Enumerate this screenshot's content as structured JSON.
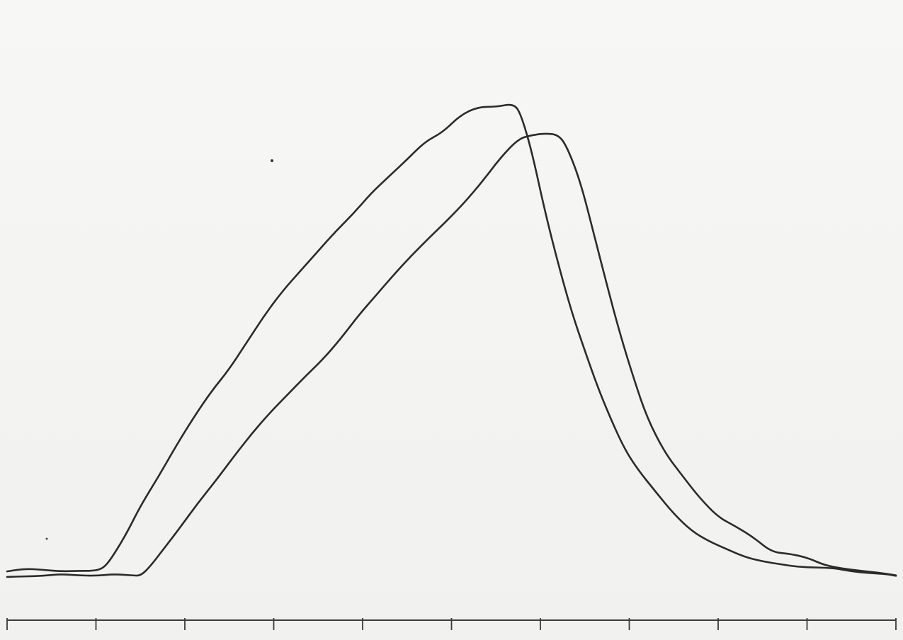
{
  "chart_data": {
    "type": "line",
    "title": "",
    "xlabel": "",
    "ylabel": "",
    "xlim": [
      0,
      10
    ],
    "ylim": [
      0,
      100
    ],
    "grid": false,
    "legend": "none",
    "x_ticks": [
      0,
      1,
      2,
      3,
      4,
      5,
      6,
      7,
      8,
      9,
      10
    ],
    "series": [
      {
        "color": "#2b2b2b",
        "points": [
          [
            0.0,
            8.8
          ],
          [
            0.2,
            9.3
          ],
          [
            0.4,
            9.1
          ],
          [
            0.6,
            8.8
          ],
          [
            0.8,
            8.9
          ],
          [
            1.0,
            8.9
          ],
          [
            1.1,
            9.6
          ],
          [
            1.2,
            11.8
          ],
          [
            1.35,
            15.8
          ],
          [
            1.5,
            20.6
          ],
          [
            1.7,
            25.8
          ],
          [
            1.9,
            31.4
          ],
          [
            2.1,
            36.6
          ],
          [
            2.3,
            41.3
          ],
          [
            2.5,
            45.3
          ],
          [
            2.7,
            50.2
          ],
          [
            2.9,
            55.1
          ],
          [
            3.1,
            59.4
          ],
          [
            3.3,
            63.0
          ],
          [
            3.5,
            66.6
          ],
          [
            3.7,
            70.2
          ],
          [
            3.9,
            73.4
          ],
          [
            4.1,
            77.1
          ],
          [
            4.3,
            80.1
          ],
          [
            4.5,
            83.1
          ],
          [
            4.7,
            86.3
          ],
          [
            4.9,
            88.0
          ],
          [
            5.1,
            91.1
          ],
          [
            5.3,
            92.6
          ],
          [
            5.5,
            92.6
          ],
          [
            5.7,
            93.2
          ],
          [
            5.78,
            91.3
          ],
          [
            5.9,
            84.8
          ],
          [
            6.05,
            73.8
          ],
          [
            6.2,
            64.3
          ],
          [
            6.35,
            55.7
          ],
          [
            6.5,
            48.6
          ],
          [
            6.65,
            41.8
          ],
          [
            6.8,
            36.0
          ],
          [
            6.95,
            30.8
          ],
          [
            7.1,
            27.1
          ],
          [
            7.3,
            23.1
          ],
          [
            7.5,
            19.2
          ],
          [
            7.7,
            16.1
          ],
          [
            7.9,
            14.2
          ],
          [
            8.1,
            12.8
          ],
          [
            8.3,
            11.4
          ],
          [
            8.5,
            10.6
          ],
          [
            8.7,
            10.1
          ],
          [
            8.9,
            9.6
          ],
          [
            9.1,
            9.5
          ],
          [
            9.3,
            9.4
          ],
          [
            9.5,
            8.8
          ],
          [
            9.7,
            8.5
          ],
          [
            9.9,
            8.3
          ],
          [
            10.0,
            8.0
          ]
        ]
      },
      {
        "color": "#2b2b2b",
        "points": [
          [
            0.0,
            7.8
          ],
          [
            0.2,
            7.9
          ],
          [
            0.4,
            8.0
          ],
          [
            0.6,
            8.3
          ],
          [
            0.8,
            8.1
          ],
          [
            1.0,
            8.0
          ],
          [
            1.2,
            8.3
          ],
          [
            1.4,
            8.1
          ],
          [
            1.5,
            8.0
          ],
          [
            1.6,
            9.5
          ],
          [
            1.75,
            12.6
          ],
          [
            1.95,
            16.8
          ],
          [
            2.15,
            21.2
          ],
          [
            2.35,
            25.2
          ],
          [
            2.55,
            29.5
          ],
          [
            2.75,
            33.6
          ],
          [
            2.95,
            37.3
          ],
          [
            3.15,
            40.6
          ],
          [
            3.35,
            43.9
          ],
          [
            3.55,
            47.0
          ],
          [
            3.75,
            50.7
          ],
          [
            3.95,
            54.9
          ],
          [
            4.15,
            58.6
          ],
          [
            4.35,
            62.3
          ],
          [
            4.55,
            65.8
          ],
          [
            4.75,
            69.0
          ],
          [
            4.95,
            72.1
          ],
          [
            5.15,
            75.4
          ],
          [
            5.35,
            79.2
          ],
          [
            5.55,
            83.4
          ],
          [
            5.75,
            86.8
          ],
          [
            5.9,
            87.5
          ],
          [
            6.05,
            87.8
          ],
          [
            6.2,
            87.6
          ],
          [
            6.3,
            85.4
          ],
          [
            6.45,
            79.1
          ],
          [
            6.6,
            69.8
          ],
          [
            6.75,
            60.4
          ],
          [
            6.9,
            51.4
          ],
          [
            7.05,
            43.6
          ],
          [
            7.2,
            36.5
          ],
          [
            7.4,
            30.2
          ],
          [
            7.6,
            26.0
          ],
          [
            7.8,
            21.9
          ],
          [
            8.0,
            18.6
          ],
          [
            8.2,
            16.9
          ],
          [
            8.4,
            14.9
          ],
          [
            8.6,
            12.3
          ],
          [
            8.8,
            12.0
          ],
          [
            9.0,
            11.3
          ],
          [
            9.2,
            9.9
          ],
          [
            9.4,
            9.3
          ],
          [
            9.6,
            8.9
          ],
          [
            9.8,
            8.6
          ],
          [
            10.0,
            8.1
          ]
        ]
      }
    ]
  }
}
